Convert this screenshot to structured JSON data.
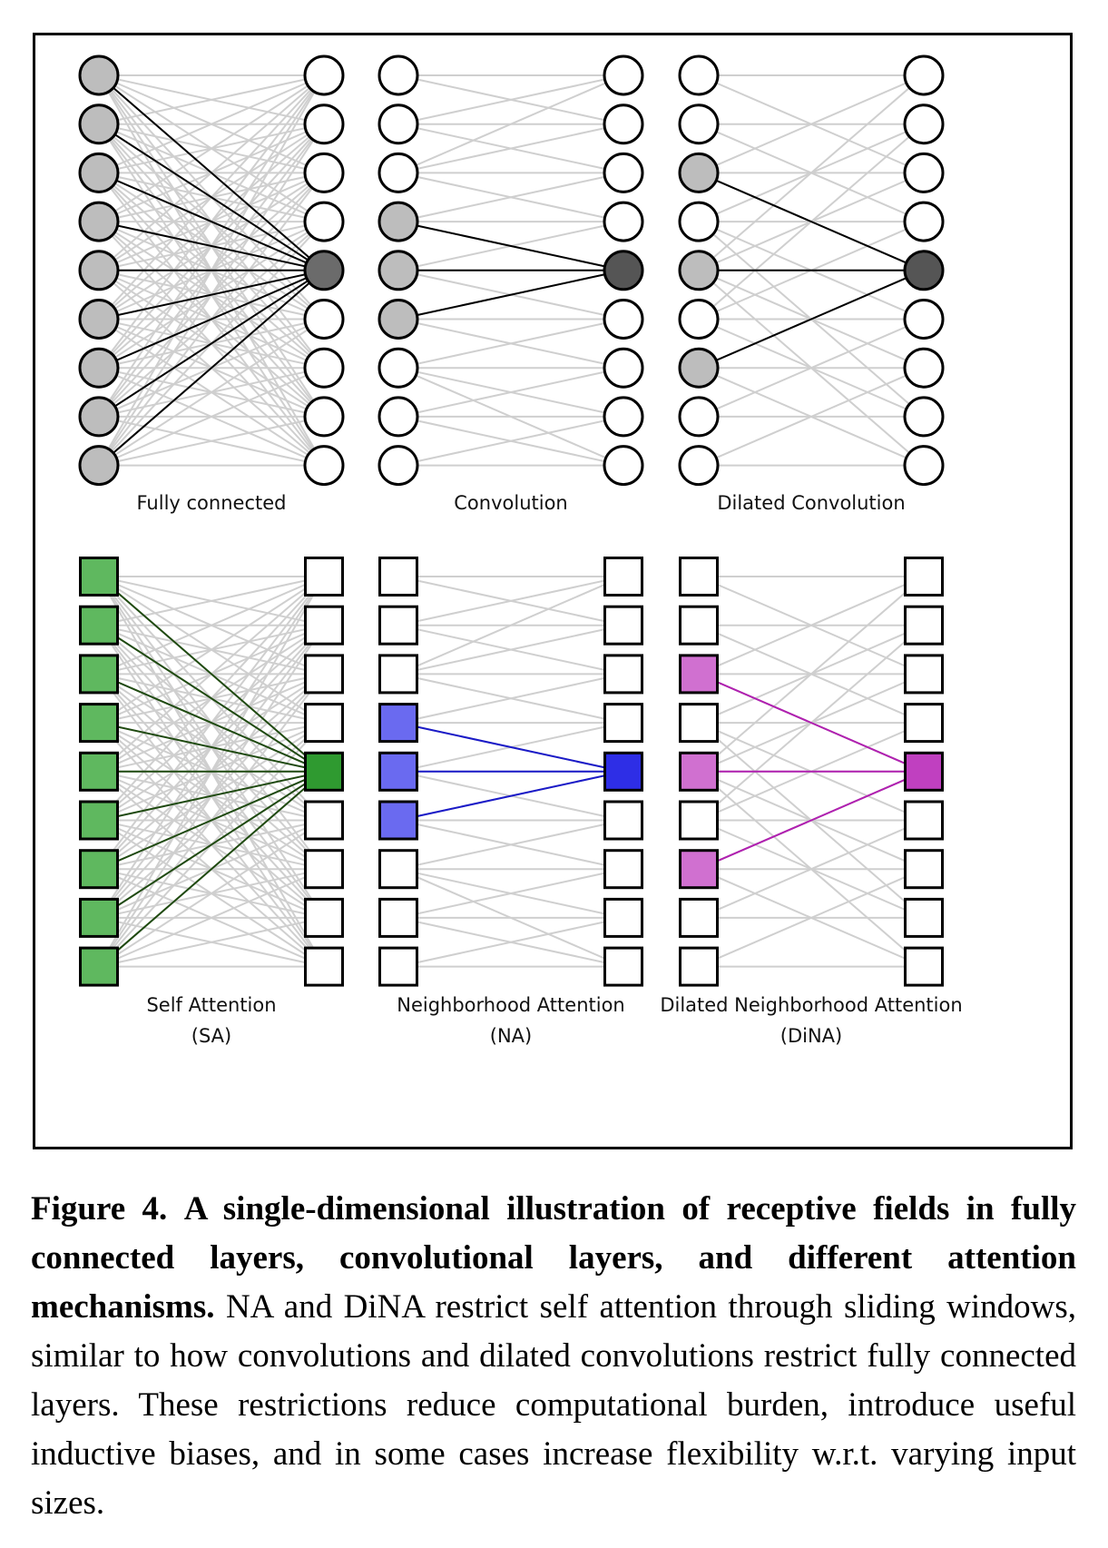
{
  "figure": {
    "panels": [
      {
        "id": "fc",
        "label": "Fully connected",
        "sublabel": "",
        "shape": "circle",
        "pattern": "full",
        "query": 4,
        "context": [
          0,
          1,
          2,
          3,
          4,
          5,
          6,
          7,
          8
        ],
        "highlight_color": "#6b6b6b",
        "context_color": "#bdbdbd",
        "line_color": "#000000"
      },
      {
        "id": "conv",
        "label": "Convolution",
        "sublabel": "",
        "shape": "circle",
        "pattern": "window",
        "query": 4,
        "context": [
          3,
          4,
          5
        ],
        "highlight_color": "#555555",
        "context_color": "#bdbdbd",
        "line_color": "#000000"
      },
      {
        "id": "dconv",
        "label": "Dilated Convolution",
        "sublabel": "",
        "shape": "circle",
        "pattern": "dilated-window",
        "query": 4,
        "context": [
          2,
          4,
          6
        ],
        "highlight_color": "#555555",
        "context_color": "#bdbdbd",
        "line_color": "#000000"
      },
      {
        "id": "sa",
        "label": "Self Attention",
        "sublabel": "(SA)",
        "shape": "square",
        "pattern": "full",
        "query": 4,
        "context": [
          0,
          1,
          2,
          3,
          4,
          5,
          6,
          7,
          8
        ],
        "highlight_color": "#2f9a30",
        "context_color": "#5fb85f",
        "line_color": "#1f4a10"
      },
      {
        "id": "na",
        "label": "Neighborhood Attention",
        "sublabel": "(NA)",
        "shape": "square",
        "pattern": "window",
        "query": 4,
        "context": [
          3,
          4,
          5
        ],
        "highlight_color": "#2e2ee6",
        "context_color": "#6a6af0",
        "line_color": "#1a1ac8"
      },
      {
        "id": "dina",
        "label": "Dilated Neighborhood Attention",
        "sublabel": "(DiNA)",
        "shape": "square",
        "pattern": "dilated-window",
        "query": 4,
        "context": [
          2,
          4,
          6
        ],
        "highlight_color": "#c040c0",
        "context_color": "#d070d0",
        "line_color": "#b020b0"
      }
    ],
    "nodes_per_column": 9
  },
  "caption": {
    "label": "Figure 4.",
    "bold_text": "A single-dimensional illustration of receptive fields in fully connected layers, convolutional layers, and different attention mechanisms.",
    "body_text": "NA and DiNA restrict self attention through sliding windows, similar to how convolutions and dilated convolutions restrict fully connected layers. These restrictions reduce computational burden, introduce useful inductive biases, and in some cases increase flexibility w.r.t. varying input sizes."
  }
}
